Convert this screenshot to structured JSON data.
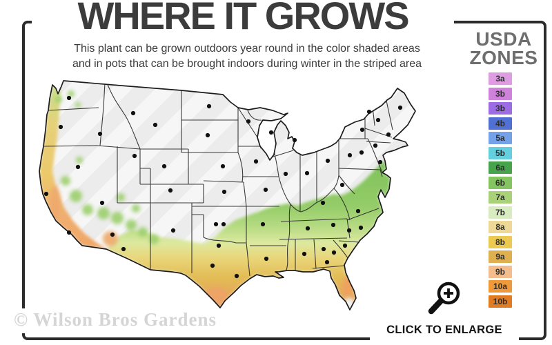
{
  "header": {
    "title": "WHERE IT GROWS",
    "subtitle_line1": "This plant can be grown outdoors year round in the color shaded areas",
    "subtitle_line2": "and in pots that can be brought indoors during winter in the striped area"
  },
  "legend": {
    "title_line1": "USDA",
    "title_line2": "ZONES",
    "zones": [
      {
        "label": "3a",
        "color": "#de9ce1"
      },
      {
        "label": "3b",
        "color": "#cf82da"
      },
      {
        "label": "3b",
        "color": "#9d6ce4"
      },
      {
        "label": "4b",
        "color": "#5071d3"
      },
      {
        "label": "5a",
        "color": "#75a1e8"
      },
      {
        "label": "5b",
        "color": "#63cfdf"
      },
      {
        "label": "6a",
        "color": "#47a44d"
      },
      {
        "label": "6b",
        "color": "#84c561"
      },
      {
        "label": "7a",
        "color": "#a9d278"
      },
      {
        "label": "7b",
        "color": "#d9ecc1"
      },
      {
        "label": "8a",
        "color": "#eed897"
      },
      {
        "label": "8b",
        "color": "#ecca52"
      },
      {
        "label": "9a",
        "color": "#deb04f"
      },
      {
        "label": "9b",
        "color": "#f3bd8d"
      },
      {
        "label": "10a",
        "color": "#f0993b"
      },
      {
        "label": "10b",
        "color": "#e07c23"
      }
    ]
  },
  "map": {
    "base_color": "#ececec",
    "stripe_color": "#ffffff",
    "outline_color": "#1c1c1c",
    "city_dot_color": "#111111"
  },
  "footer": {
    "click_to_enlarge": "CLICK TO ENLARGE",
    "watermark": "© Wilson Bros Gardens"
  }
}
